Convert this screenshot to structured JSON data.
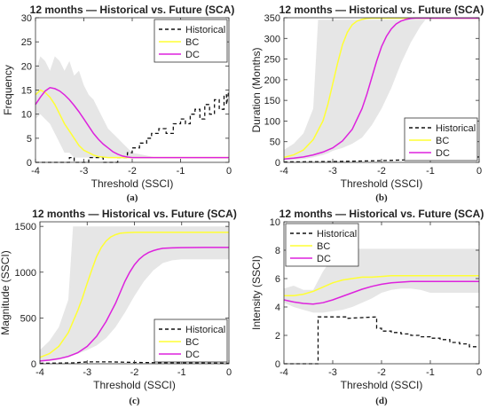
{
  "colors": {
    "band": "#e6e6e6",
    "historical": "#111111",
    "bc": "#ffff33",
    "dc": "#dd22dd",
    "axis": "#333333"
  },
  "chart_data": [
    {
      "id": "a",
      "caption": "(a)",
      "type": "line",
      "title": "12 months — Historical vs. Future (SCA)",
      "xlabel": "Threshold (SSCI)",
      "ylabel": "Frequency",
      "xlim": [
        -4,
        0
      ],
      "ylim": [
        0,
        30
      ],
      "xticks": [
        -4,
        -3,
        -2,
        -1,
        0
      ],
      "yticks": [
        0,
        5,
        10,
        15,
        20,
        25,
        30
      ],
      "legend_position": "top-right",
      "band": {
        "x": [
          -4,
          -3.9,
          -3.8,
          -3.7,
          -3.6,
          -3.5,
          -3.4,
          -3.3,
          -3.2,
          -3.1,
          -3,
          -2.9,
          -2.8,
          -2.7,
          -2.6,
          -2.5,
          -2.4,
          -2.3,
          -2.2,
          -2.1,
          -2,
          -1.5,
          -1,
          -0.5,
          0
        ],
        "lower": [
          9,
          10,
          9,
          8,
          6,
          4,
          2,
          2,
          1,
          1,
          1,
          1,
          1,
          1,
          1,
          1,
          1,
          1,
          1,
          1,
          1,
          1,
          1,
          1,
          1
        ],
        "upper": [
          19,
          22,
          21,
          19,
          22,
          21,
          19,
          21,
          18,
          19,
          16,
          14,
          13,
          11,
          9,
          7,
          6,
          5,
          4,
          3,
          2,
          1,
          1,
          1,
          1
        ]
      },
      "series": [
        {
          "name": "Historical",
          "style": "dashed",
          "x": [
            -4,
            -3.3,
            -3.3,
            -3.2,
            -3.2,
            -2.9,
            -2.9,
            -2.6,
            -2.6,
            -2.3,
            -2.3,
            -2.1,
            -2.1,
            -2.0,
            -2.0,
            -1.85,
            -1.85,
            -1.7,
            -1.7,
            -1.6,
            -1.6,
            -1.45,
            -1.45,
            -1.3,
            -1.3,
            -1.15,
            -1.15,
            -1.0,
            -1.0,
            -0.9,
            -0.9,
            -0.8,
            -0.8,
            -0.7,
            -0.7,
            -0.6,
            -0.6,
            -0.5,
            -0.5,
            -0.4,
            -0.4,
            -0.3,
            -0.3,
            -0.2,
            -0.2,
            -0.1,
            -0.1,
            -0.05,
            -0.05,
            0
          ],
          "y": [
            0,
            0,
            1,
            1,
            0,
            0,
            1,
            1,
            0,
            0,
            1,
            1,
            2,
            2,
            3,
            3,
            4,
            4,
            5,
            5,
            6,
            6,
            7,
            7,
            6,
            6,
            8,
            8,
            9,
            9,
            8,
            8,
            10,
            10,
            11,
            11,
            9,
            9,
            12,
            12,
            10,
            10,
            13,
            13,
            11,
            11,
            14,
            14,
            12,
            15
          ]
        },
        {
          "name": "BC",
          "style": "solid",
          "x": [
            -4,
            -3.9,
            -3.8,
            -3.7,
            -3.6,
            -3.5,
            -3.4,
            -3.3,
            -3.2,
            -3.1,
            -3,
            -2.9,
            -2.8,
            -2.7,
            -2.6,
            -2.5,
            -2.4,
            -2.2,
            -2,
            -1.5,
            -1,
            -0.5,
            0
          ],
          "y": [
            14,
            15,
            14.5,
            13.5,
            12,
            10,
            8,
            6.5,
            5,
            3.5,
            2.5,
            2,
            1.5,
            1.2,
            1.1,
            1,
            1,
            1,
            1,
            1,
            1,
            1,
            1
          ]
        },
        {
          "name": "DC",
          "style": "solid",
          "x": [
            -4,
            -3.9,
            -3.8,
            -3.7,
            -3.6,
            -3.5,
            -3.4,
            -3.3,
            -3.2,
            -3.1,
            -3,
            -2.9,
            -2.8,
            -2.7,
            -2.6,
            -2.5,
            -2.4,
            -2.3,
            -2.2,
            -2.1,
            -2,
            -1.5,
            -1,
            -0.5,
            0
          ],
          "y": [
            12,
            13.5,
            14.8,
            15.5,
            15.3,
            14.8,
            14,
            13,
            11.8,
            10.5,
            9,
            7.5,
            6,
            4.8,
            3.8,
            3,
            2.2,
            1.7,
            1.3,
            1.1,
            1,
            1,
            1,
            1,
            1
          ]
        }
      ]
    },
    {
      "id": "b",
      "caption": "(b)",
      "type": "line",
      "title": "12 months — Historical vs. Future (SCA)",
      "xlabel": "Threshold (SSCI)",
      "ylabel": "Duration (Months)",
      "xlim": [
        -4,
        0
      ],
      "ylim": [
        0,
        350
      ],
      "xticks": [
        -4,
        -3,
        -2,
        -1,
        0
      ],
      "yticks": [
        0,
        50,
        100,
        150,
        200,
        250,
        300,
        350
      ],
      "legend_position": "bottom-right",
      "band": {
        "x": [
          -4,
          -3.8,
          -3.6,
          -3.4,
          -3.3,
          -3.2,
          -3.1,
          -3,
          -2.8,
          -2.6,
          -2.4,
          -2.2,
          -2,
          -1.8,
          -1.6,
          -1.4,
          -1.2,
          -1.1,
          -1,
          -0.5,
          0
        ],
        "lower": [
          5,
          6,
          8,
          12,
          15,
          18,
          22,
          28,
          35,
          45,
          60,
          90,
          130,
          180,
          240,
          290,
          330,
          345,
          345,
          345,
          345
        ],
        "upper": [
          30,
          45,
          70,
          130,
          345,
          345,
          345,
          345,
          345,
          345,
          345,
          345,
          345,
          345,
          345,
          345,
          345,
          345,
          345,
          345,
          345
        ]
      },
      "series": [
        {
          "name": "Historical",
          "style": "dashed",
          "x": [
            -4,
            -3,
            -2,
            -1.5,
            -1,
            -0.5,
            0
          ],
          "y": [
            1,
            2,
            4,
            6,
            8,
            10,
            13
          ]
        },
        {
          "name": "BC",
          "style": "solid",
          "x": [
            -4,
            -3.8,
            -3.6,
            -3.4,
            -3.2,
            -3.1,
            -3,
            -2.9,
            -2.8,
            -2.7,
            -2.6,
            -2.5,
            -2.4,
            -2.3,
            -2.2,
            -2,
            -1.5,
            -1,
            -0.5,
            0
          ],
          "y": [
            12,
            18,
            30,
            55,
            100,
            140,
            190,
            240,
            285,
            315,
            333,
            342,
            346,
            348,
            349,
            349,
            349,
            349,
            349,
            349
          ]
        },
        {
          "name": "DC",
          "style": "solid",
          "x": [
            -4,
            -3.8,
            -3.6,
            -3.4,
            -3.2,
            -3,
            -2.8,
            -2.6,
            -2.4,
            -2.3,
            -2.2,
            -2.1,
            -2,
            -1.9,
            -1.8,
            -1.7,
            -1.6,
            -1.5,
            -1.4,
            -1.3,
            -1.2,
            -1,
            -0.5,
            0
          ],
          "y": [
            8,
            10,
            13,
            18,
            25,
            35,
            52,
            80,
            130,
            165,
            205,
            245,
            280,
            305,
            323,
            335,
            342,
            346,
            348,
            349,
            349,
            349,
            349,
            349
          ]
        }
      ]
    },
    {
      "id": "c",
      "caption": "(c)",
      "type": "line",
      "title": "12 months — Historical vs. Future (SCA)",
      "xlabel": "Threshold (SSCI)",
      "ylabel": "Magnitude (SSCI)",
      "xlim": [
        -4,
        0
      ],
      "ylim": [
        0,
        1550
      ],
      "xticks": [
        -4,
        -3,
        -2,
        -1,
        0
      ],
      "yticks": [
        0,
        500,
        1000,
        1500
      ],
      "legend_position": "bottom-right",
      "band": {
        "x": [
          -4,
          -3.8,
          -3.6,
          -3.4,
          -3.3,
          -3.2,
          -3.1,
          -3,
          -2.8,
          -2.6,
          -2.4,
          -2.2,
          -2,
          -1.8,
          -1.6,
          -1.4,
          -1.2,
          -1,
          -0.5,
          0
        ],
        "lower": [
          20,
          30,
          45,
          70,
          90,
          110,
          130,
          150,
          200,
          280,
          400,
          560,
          740,
          900,
          1020,
          1100,
          1130,
          1140,
          1140,
          1140
        ],
        "upper": [
          150,
          250,
          400,
          700,
          1500,
          1500,
          1500,
          1500,
          1500,
          1500,
          1500,
          1500,
          1500,
          1500,
          1500,
          1500,
          1500,
          1500,
          1500,
          1500
        ]
      },
      "series": [
        {
          "name": "Historical",
          "style": "dashed",
          "x": [
            -4,
            -3.3,
            -3,
            -2.5,
            -2,
            -1.5,
            -1,
            -0.5,
            0
          ],
          "y": [
            5,
            10,
            20,
            20,
            15,
            12,
            10,
            8,
            6
          ]
        },
        {
          "name": "BC",
          "style": "solid",
          "x": [
            -4,
            -3.8,
            -3.6,
            -3.4,
            -3.2,
            -3.1,
            -3,
            -2.9,
            -2.8,
            -2.7,
            -2.6,
            -2.5,
            -2.4,
            -2.3,
            -2.2,
            -2,
            -1.5,
            -1,
            -0.5,
            0
          ],
          "y": [
            70,
            110,
            190,
            340,
            580,
            720,
            880,
            1030,
            1170,
            1270,
            1340,
            1385,
            1410,
            1425,
            1430,
            1435,
            1435,
            1435,
            1435,
            1435
          ]
        },
        {
          "name": "DC",
          "style": "solid",
          "x": [
            -4,
            -3.8,
            -3.6,
            -3.4,
            -3.2,
            -3,
            -2.8,
            -2.6,
            -2.4,
            -2.3,
            -2.2,
            -2.1,
            -2,
            -1.9,
            -1.8,
            -1.7,
            -1.6,
            -1.5,
            -1.4,
            -1.2,
            -1,
            -0.5,
            0
          ],
          "y": [
            30,
            40,
            55,
            80,
            120,
            190,
            300,
            460,
            660,
            780,
            900,
            1000,
            1080,
            1140,
            1185,
            1215,
            1235,
            1250,
            1260,
            1265,
            1268,
            1270,
            1270
          ]
        }
      ]
    },
    {
      "id": "d",
      "caption": "(d)",
      "type": "line",
      "title": "12 months — Historical vs. Future (SCA)",
      "xlabel": "Threshold (SSCI)",
      "ylabel": "Intensity (SSCI)",
      "xlim": [
        -4,
        0
      ],
      "ylim": [
        0,
        10
      ],
      "xticks": [
        -4,
        -3,
        -2,
        -1,
        0
      ],
      "yticks": [
        0,
        2,
        4,
        6,
        8,
        10
      ],
      "legend_position": "top-left",
      "band": {
        "x": [
          -4,
          -3.8,
          -3.6,
          -3.4,
          -3.2,
          -3,
          -2.8,
          -2.6,
          -2.4,
          -2.2,
          -2,
          -1.8,
          -1.6,
          -1.4,
          -1.2,
          -1,
          -0.8,
          -0.6,
          -0.4,
          -0.2,
          0
        ],
        "lower": [
          4.3,
          4.0,
          3.8,
          3.6,
          3.6,
          3.7,
          3.8,
          4.0,
          4.3,
          4.6,
          5.0,
          5.2,
          5.3,
          5.3,
          5.2,
          5.0,
          5.0,
          5.0,
          5.0,
          5.0,
          5.0
        ],
        "upper": [
          5.3,
          5.5,
          5.2,
          5.2,
          6.5,
          7.5,
          7.8,
          8.1,
          8.1,
          8.1,
          8.1,
          8.1,
          8.1,
          8.1,
          8.1,
          8.1,
          8.1,
          8.1,
          8.1,
          8.1,
          8.1
        ]
      },
      "series": [
        {
          "name": "Historical",
          "style": "dashed",
          "x": [
            -4,
            -3.3,
            -3.3,
            -2.7,
            -2.7,
            -2.1,
            -2.1,
            -2.0,
            -2.0,
            -1.8,
            -1.8,
            -1.6,
            -1.6,
            -1.4,
            -1.4,
            -1.2,
            -1.2,
            -1.0,
            -1.0,
            -0.8,
            -0.8,
            -0.6,
            -0.6,
            -0.4,
            -0.4,
            -0.2,
            -0.2,
            0
          ],
          "y": [
            0,
            0,
            3.3,
            3.3,
            3.2,
            3.3,
            2.5,
            2.5,
            2.3,
            2.3,
            2.2,
            2.2,
            2.1,
            2.1,
            2.0,
            2.0,
            1.9,
            1.9,
            1.8,
            1.8,
            1.7,
            1.7,
            1.5,
            1.5,
            1.4,
            1.4,
            1.2,
            1.2
          ]
        },
        {
          "name": "BC",
          "style": "solid",
          "x": [
            -4,
            -3.8,
            -3.6,
            -3.4,
            -3.2,
            -3,
            -2.8,
            -2.6,
            -2.4,
            -2.2,
            -2,
            -1.8,
            -1.5,
            -1,
            -0.5,
            0
          ],
          "y": [
            4.8,
            4.8,
            4.9,
            5.1,
            5.4,
            5.7,
            5.9,
            6.0,
            6.1,
            6.1,
            6.15,
            6.2,
            6.2,
            6.2,
            6.2,
            6.2
          ]
        },
        {
          "name": "DC",
          "style": "solid",
          "x": [
            -4,
            -3.8,
            -3.6,
            -3.4,
            -3.2,
            -3,
            -2.8,
            -2.6,
            -2.4,
            -2.2,
            -2,
            -1.8,
            -1.6,
            -1.4,
            -1,
            -0.5,
            0
          ],
          "y": [
            4.5,
            4.35,
            4.25,
            4.2,
            4.3,
            4.5,
            4.75,
            5.0,
            5.25,
            5.45,
            5.6,
            5.7,
            5.75,
            5.8,
            5.8,
            5.8,
            5.8
          ]
        }
      ]
    }
  ]
}
